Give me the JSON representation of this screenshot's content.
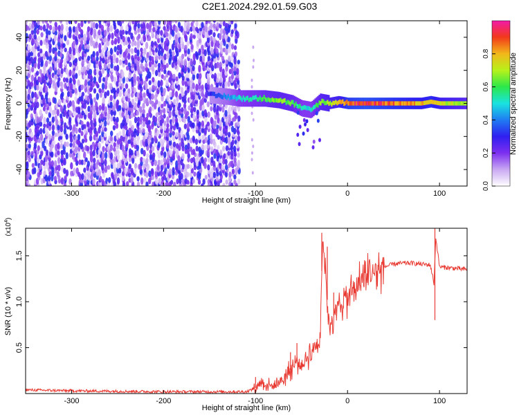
{
  "title": "C2E1.2024.292.01.59.G03",
  "colors": {
    "snr_line": "#e83a32",
    "frame": "#000000"
  },
  "chart_data": [
    {
      "type": "heatmap",
      "xlabel": "Height of straight line (km)",
      "ylabel": "Frequency (Hz)",
      "xlim": [
        -350,
        130
      ],
      "ylim": [
        -50,
        50
      ],
      "xticks": [
        -300,
        -200,
        -100,
        0,
        100
      ],
      "yticks": [
        -40,
        -20,
        0,
        20,
        40
      ],
      "colorbar": {
        "label": "Normalized spectral amplitude",
        "range": [
          0.0,
          1.0
        ],
        "ticks": [
          "0.0",
          "0.2",
          "0.4",
          "0.6",
          "0.8"
        ],
        "colors": [
          "#ffffff",
          "#c9a8f2",
          "#7d2ff0",
          "#2f1ff0",
          "#1f7cf2",
          "#19e3e0",
          "#2ce84a",
          "#b6f21a",
          "#f2b81a",
          "#f23a1a",
          "#f21aa6"
        ]
      },
      "noise_region": {
        "x": [
          -350,
          -118
        ],
        "typical_amplitude": 0.15
      },
      "ridge": {
        "x": [
          -150,
          -130,
          -118,
          -100,
          -90,
          -75,
          -60,
          -50,
          -40,
          -30,
          -20,
          -10,
          0,
          20,
          40,
          60,
          80,
          90,
          100,
          120,
          130
        ],
        "freq": [
          5,
          4,
          3,
          3,
          3,
          2,
          0,
          -3,
          -4,
          1,
          0,
          1,
          0,
          0,
          0,
          0,
          0,
          1,
          0,
          0,
          0
        ],
        "amplitude": [
          0.35,
          0.45,
          0.55,
          0.6,
          0.65,
          0.7,
          0.65,
          0.55,
          0.55,
          0.7,
          0.75,
          0.8,
          0.95,
          1.0,
          0.95,
          0.9,
          0.85,
          0.9,
          0.8,
          0.75,
          0.7
        ]
      },
      "grid": false
    },
    {
      "type": "line",
      "xlabel": "Height of straight line (km)",
      "ylabel": "SNR (10 * v/v)",
      "yscale_label": "(x10",
      "yscale_exponent": "4",
      "y_unit_factor": 10000,
      "xlim": [
        -350,
        130
      ],
      "ylim": [
        0,
        1.8
      ],
      "xticks": [
        -300,
        -200,
        -100,
        0,
        100
      ],
      "yticks": [
        0.5,
        1.0,
        1.5
      ],
      "ytick_labels": [
        "0.5",
        "1.0",
        "1.5"
      ],
      "series": [
        {
          "x": [
            -350,
            -300,
            -250,
            -200,
            -150,
            -110,
            -100,
            -95,
            -90,
            -80,
            -70,
            -60,
            -55,
            -50,
            -40,
            -30,
            -27,
            -20,
            -10,
            0,
            10,
            20,
            30,
            40,
            50,
            60,
            70,
            80,
            90,
            94,
            96,
            100,
            110,
            120,
            130
          ],
          "y": [
            0.04,
            0.03,
            0.025,
            0.02,
            0.02,
            0.02,
            0.06,
            0.13,
            0.1,
            0.08,
            0.16,
            0.28,
            0.35,
            0.3,
            0.45,
            0.6,
            1.7,
            0.75,
            0.95,
            1.05,
            1.18,
            1.27,
            1.33,
            1.38,
            1.41,
            1.42,
            1.42,
            1.41,
            1.4,
            1.2,
            1.7,
            1.38,
            1.37,
            1.36,
            1.35
          ],
          "spikes": [
            [
              -100,
              0.18
            ],
            [
              -62,
              0.45
            ],
            [
              -55,
              0.55
            ],
            [
              -28,
              1.75
            ],
            [
              -22,
              1.6
            ],
            [
              -15,
              1.1
            ],
            [
              95,
              1.8
            ],
            [
              95,
              0.8
            ]
          ]
        }
      ],
      "grid": false
    }
  ]
}
